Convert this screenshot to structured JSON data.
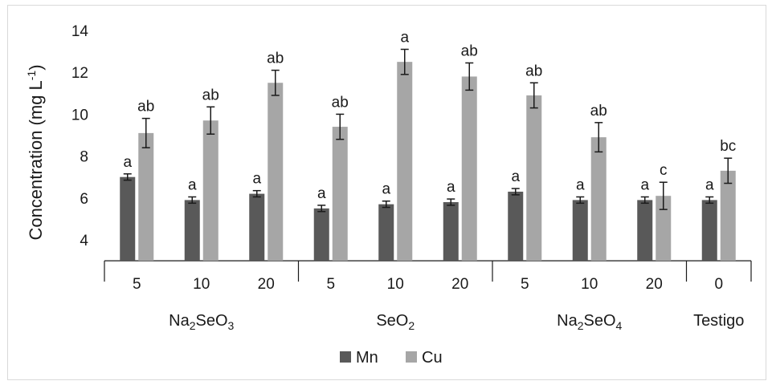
{
  "chart_data": {
    "type": "bar",
    "ylabel": "Concentration (mg L⁻¹)",
    "ylabel_main": "Concentration (mg L",
    "ylabel_sup": "-1",
    "ylabel_close": ")",
    "ylim": [
      3,
      14
    ],
    "yticks": [
      "4",
      "6",
      "8",
      "10",
      "12",
      "14"
    ],
    "groups": [
      {
        "label": "Na2SeO3",
        "parts": [
          "Na",
          "2",
          "SeO",
          "3"
        ],
        "count": 3
      },
      {
        "label": "SeO2",
        "parts": [
          "SeO",
          "2"
        ],
        "count": 3
      },
      {
        "label": "Na2SeO4",
        "parts": [
          "Na",
          "2",
          "SeO",
          "4"
        ],
        "count": 3
      },
      {
        "label": "Testigo",
        "parts": [
          "Testigo"
        ],
        "count": 1
      }
    ],
    "categories": [
      "5",
      "10",
      "20",
      "5",
      "10",
      "20",
      "5",
      "10",
      "20",
      "0"
    ],
    "series": [
      {
        "name": "Mn",
        "color": "#595959",
        "values": [
          7.0,
          5.9,
          6.2,
          5.5,
          5.7,
          5.8,
          6.3,
          5.9,
          5.9,
          5.9
        ],
        "errors": [
          0.15,
          0.15,
          0.15,
          0.15,
          0.15,
          0.15,
          0.15,
          0.15,
          0.15,
          0.15
        ],
        "letters": [
          "a",
          "a",
          "a",
          "a",
          "a",
          "a",
          "a",
          "a",
          "a",
          "a"
        ]
      },
      {
        "name": "Cu",
        "color": "#a6a6a6",
        "values": [
          9.1,
          9.7,
          11.5,
          9.4,
          12.5,
          11.8,
          10.9,
          8.9,
          6.1,
          7.3
        ],
        "errors": [
          0.7,
          0.65,
          0.6,
          0.6,
          0.6,
          0.65,
          0.6,
          0.7,
          0.65,
          0.6
        ],
        "letters": [
          "ab",
          "ab",
          "ab",
          "ab",
          "a",
          "ab",
          "ab",
          "ab",
          "c",
          "bc"
        ]
      }
    ],
    "legend_position": "bottom",
    "grid": false
  }
}
